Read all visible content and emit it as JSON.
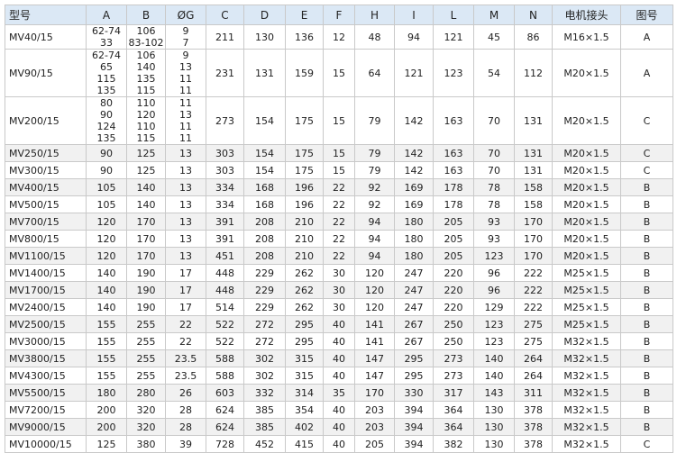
{
  "table": {
    "header": [
      "型号",
      "A",
      "B",
      "ØG",
      "C",
      "D",
      "E",
      "F",
      "H",
      "I",
      "L",
      "M",
      "N",
      "电机接头",
      "图号"
    ],
    "rows": [
      [
        "MV40/15",
        [
          "62-74",
          "33"
        ],
        [
          "106",
          "83-102"
        ],
        [
          "9",
          "7"
        ],
        "211",
        "130",
        "136",
        "12",
        "48",
        "94",
        "121",
        "45",
        "86",
        "M16×1.5",
        "A"
      ],
      [
        "MV90/15",
        [
          "62-74",
          "65",
          "115",
          "135"
        ],
        [
          "106",
          "140",
          "135",
          "115"
        ],
        [
          "9",
          "13",
          "11",
          "11"
        ],
        "231",
        "131",
        "159",
        "15",
        "64",
        "121",
        "123",
        "54",
        "112",
        "M20×1.5",
        "A"
      ],
      [
        "MV200/15",
        [
          "80",
          "90",
          "124",
          "135"
        ],
        [
          "110",
          "120",
          "110",
          "115"
        ],
        [
          "11",
          "13",
          "11",
          "11"
        ],
        "273",
        "154",
        "175",
        "15",
        "79",
        "142",
        "163",
        "70",
        "131",
        "M20×1.5",
        "C"
      ],
      [
        "MV250/15",
        "90",
        "125",
        "13",
        "303",
        "154",
        "175",
        "15",
        "79",
        "142",
        "163",
        "70",
        "131",
        "M20×1.5",
        "C"
      ],
      [
        "MV300/15",
        "90",
        "125",
        "13",
        "303",
        "154",
        "175",
        "15",
        "79",
        "142",
        "163",
        "70",
        "131",
        "M20×1.5",
        "C"
      ],
      [
        "MV400/15",
        "105",
        "140",
        "13",
        "334",
        "168",
        "196",
        "22",
        "92",
        "169",
        "178",
        "78",
        "158",
        "M20×1.5",
        "B"
      ],
      [
        "MV500/15",
        "105",
        "140",
        "13",
        "334",
        "168",
        "196",
        "22",
        "92",
        "169",
        "178",
        "78",
        "158",
        "M20×1.5",
        "B"
      ],
      [
        "MV700/15",
        "120",
        "170",
        "13",
        "391",
        "208",
        "210",
        "22",
        "94",
        "180",
        "205",
        "93",
        "170",
        "M20×1.5",
        "B"
      ],
      [
        "MV800/15",
        "120",
        "170",
        "13",
        "391",
        "208",
        "210",
        "22",
        "94",
        "180",
        "205",
        "93",
        "170",
        "M20×1.5",
        "B"
      ],
      [
        "MV1100/15",
        "120",
        "170",
        "13",
        "451",
        "208",
        "210",
        "22",
        "94",
        "180",
        "205",
        "123",
        "170",
        "M20×1.5",
        "B"
      ],
      [
        "MV1400/15",
        "140",
        "190",
        "17",
        "448",
        "229",
        "262",
        "30",
        "120",
        "247",
        "220",
        "96",
        "222",
        "M25×1.5",
        "B"
      ],
      [
        "MV1700/15",
        "140",
        "190",
        "17",
        "448",
        "229",
        "262",
        "30",
        "120",
        "247",
        "220",
        "96",
        "222",
        "M25×1.5",
        "B"
      ],
      [
        "MV2400/15",
        "140",
        "190",
        "17",
        "514",
        "229",
        "262",
        "30",
        "120",
        "247",
        "220",
        "129",
        "222",
        "M25×1.5",
        "B"
      ],
      [
        "MV2500/15",
        "155",
        "255",
        "22",
        "522",
        "272",
        "295",
        "40",
        "141",
        "267",
        "250",
        "123",
        "275",
        "M25×1.5",
        "B"
      ],
      [
        "MV3000/15",
        "155",
        "255",
        "22",
        "522",
        "272",
        "295",
        "40",
        "141",
        "267",
        "250",
        "123",
        "275",
        "M32×1.5",
        "B"
      ],
      [
        "MV3800/15",
        "155",
        "255",
        "23.5",
        "588",
        "302",
        "315",
        "40",
        "147",
        "295",
        "273",
        "140",
        "264",
        "M32×1.5",
        "B"
      ],
      [
        "MV4300/15",
        "155",
        "255",
        "23.5",
        "588",
        "302",
        "315",
        "40",
        "147",
        "295",
        "273",
        "140",
        "264",
        "M32×1.5",
        "B"
      ],
      [
        "MV5500/15",
        "180",
        "280",
        "26",
        "603",
        "332",
        "314",
        "35",
        "170",
        "330",
        "317",
        "143",
        "311",
        "M32×1.5",
        "B"
      ],
      [
        "MV7200/15",
        "200",
        "320",
        "28",
        "624",
        "385",
        "354",
        "40",
        "203",
        "394",
        "364",
        "130",
        "378",
        "M32×1.5",
        "B"
      ],
      [
        "MV9000/15",
        "200",
        "320",
        "28",
        "624",
        "385",
        "402",
        "40",
        "203",
        "394",
        "364",
        "130",
        "378",
        "M32×1.5",
        "B"
      ],
      [
        "MV10000/15",
        "125",
        "380",
        "39",
        "728",
        "452",
        "415",
        "40",
        "205",
        "394",
        "382",
        "130",
        "378",
        "M32×1.5",
        "C"
      ]
    ]
  }
}
